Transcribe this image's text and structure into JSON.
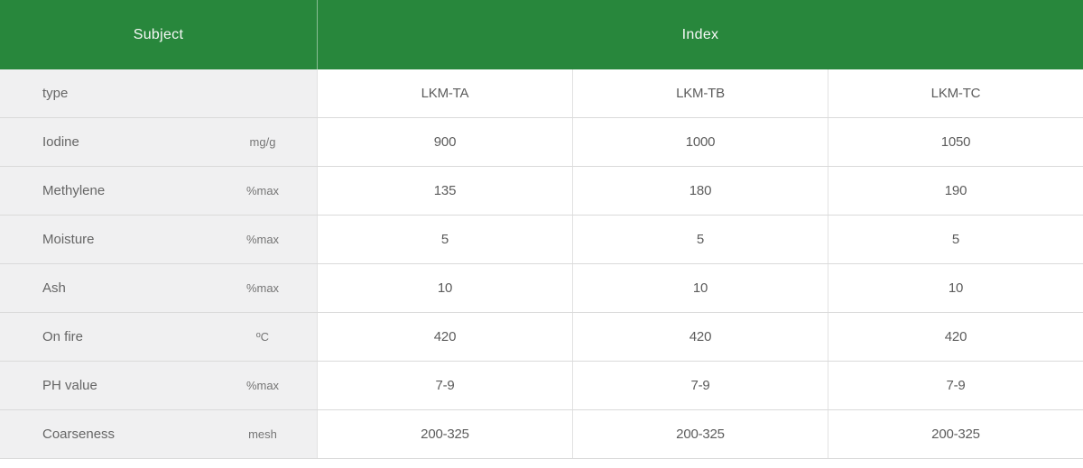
{
  "theme": {
    "header_bg": "#28873C",
    "header_divider": "rgba(255,255,255,0.45)",
    "header_text": "#f7f8f7",
    "subject_bg": "#f0f0f1",
    "row_border": "#dadada",
    "col_border": "#e2e2e2",
    "label_color": "#666666",
    "unit_color": "#757575",
    "value_color": "#5c5c5c"
  },
  "table": {
    "header": {
      "subject_label": "Subject",
      "index_label": "Index"
    },
    "rows": [
      {
        "label": "type",
        "unit": "",
        "values": [
          "LKM-TA",
          "LKM-TB",
          "LKM-TC"
        ]
      },
      {
        "label": "Iodine",
        "unit": "mg/g",
        "values": [
          "900",
          "1000",
          "1050"
        ]
      },
      {
        "label": "Methylene",
        "unit": "%max",
        "values": [
          "135",
          "180",
          "190"
        ]
      },
      {
        "label": "Moisture",
        "unit": "%max",
        "values": [
          "5",
          "5",
          "5"
        ]
      },
      {
        "label": "Ash",
        "unit": "%max",
        "values": [
          "10",
          "10",
          "10"
        ]
      },
      {
        "label": "On fire",
        "unit": "ºC",
        "values": [
          "420",
          "420",
          "420"
        ]
      },
      {
        "label": "PH value",
        "unit": "%max",
        "values": [
          "7-9",
          "7-9",
          "7-9"
        ]
      },
      {
        "label": "Coarseness",
        "unit": "mesh",
        "values": [
          "200-325",
          "200-325",
          "200-325"
        ]
      }
    ]
  }
}
